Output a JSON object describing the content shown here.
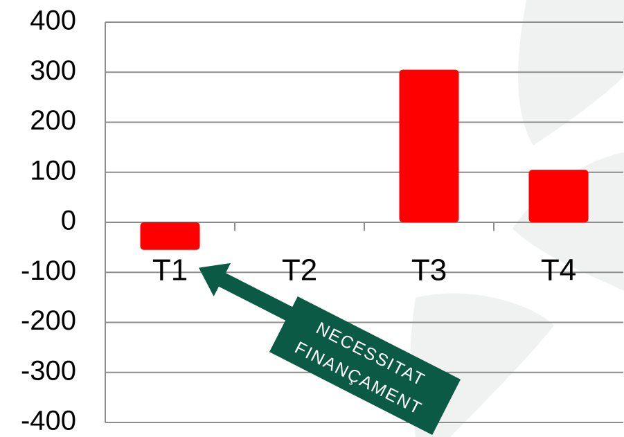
{
  "chart_data": {
    "type": "bar",
    "categories": [
      "T1",
      "T2",
      "T3",
      "T4"
    ],
    "values": [
      -55,
      0,
      305,
      105
    ],
    "color": "#ff0000",
    "ylim": [
      -400,
      400
    ],
    "yticks": [
      -400,
      -300,
      -200,
      -100,
      0,
      100,
      200,
      300,
      400
    ],
    "grid": true,
    "annotation": [
      "NECESSITAT",
      "FINANÇAMENT"
    ]
  }
}
